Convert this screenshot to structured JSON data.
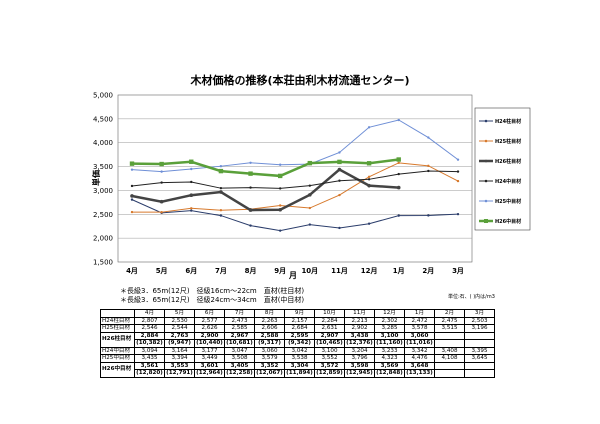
{
  "chart_data": {
    "type": "line",
    "title": "木材価格の推移(本荘由利木材流通センター)",
    "ylabel": "単価",
    "xlabel": "月",
    "ylim": [
      1500,
      5000
    ],
    "yticks": [
      "1,500",
      "2,000",
      "2,500",
      "3,000",
      "3,500",
      "4,000",
      "4,500",
      "5,000"
    ],
    "categories": [
      "4月",
      "5月",
      "6月",
      "7月",
      "8月",
      "9月",
      "10月",
      "11月",
      "12月",
      "1月",
      "2月",
      "3月"
    ],
    "grid": true,
    "legend_position": "right",
    "series": [
      {
        "name": "H24柱目材",
        "color": "#2b3d6b",
        "marker": "dot",
        "width": 1,
        "values": [
          2807,
          2530,
          2577,
          2473,
          2263,
          2157,
          2284,
          2213,
          2302,
          2472,
          2475,
          2503
        ]
      },
      {
        "name": "H25柱目材",
        "color": "#d7792c",
        "marker": "dot",
        "width": 1,
        "values": [
          2546,
          2544,
          2626,
          2585,
          2606,
          2684,
          2631,
          2902,
          3285,
          3578,
          3515,
          3196
        ]
      },
      {
        "name": "H26柱目材",
        "color": "#444444",
        "marker": "dot",
        "width": 2.5,
        "values": [
          2884,
          2763,
          2900,
          2967,
          2588,
          2595,
          2907,
          3438,
          3100,
          3060,
          null,
          null
        ]
      },
      {
        "name": "H24中目材",
        "color": "#222222",
        "marker": "dot",
        "width": 1,
        "values": [
          3094,
          3164,
          3177,
          3047,
          3060,
          3042,
          3100,
          3204,
          3233,
          3342,
          3408,
          3395
        ]
      },
      {
        "name": "H25中目材",
        "color": "#6f8fd6",
        "marker": "dot",
        "width": 1,
        "values": [
          3435,
          3394,
          3449,
          3508,
          3579,
          3538,
          3552,
          3796,
          4323,
          4476,
          4108,
          3645
        ]
      },
      {
        "name": "H26中目材",
        "color": "#5aa03a",
        "marker": "square",
        "width": 2.5,
        "values": [
          3561,
          3553,
          3601,
          3405,
          3352,
          3304,
          3572,
          3598,
          3569,
          3648,
          null,
          null
        ]
      }
    ]
  },
  "notes": [
    "＊長級3．65m(12尺)　径級16cm～22cm　直材(柱目材)",
    "＊長級3．65m(12尺)　径級24cm～34cm　直材(中目材)"
  ],
  "unit_note": "単位:石、( )内は/m3",
  "table": {
    "header": [
      "",
      "4月",
      "5月",
      "6月",
      "7月",
      "8月",
      "9月",
      "10月",
      "11月",
      "12月",
      "1月",
      "2月",
      "3月"
    ],
    "rows": [
      {
        "label": "H24柱目材",
        "cells": [
          "2,807",
          "2,530",
          "2,577",
          "2,473",
          "2,263",
          "2,157",
          "2,284",
          "2,213",
          "2,302",
          "2,472",
          "2,475",
          "2,503"
        ]
      },
      {
        "label": "H25柱目材",
        "cells": [
          "2,546",
          "2,544",
          "2,626",
          "2,585",
          "2,606",
          "2,684",
          "2,631",
          "2,902",
          "3,285",
          "3,578",
          "3,515",
          "3,196"
        ]
      },
      {
        "label": "H26柱目材",
        "bold": true,
        "cells": [
          "2,884",
          "2,763",
          "2,900",
          "2,967",
          "2,588",
          "2,595",
          "2,907",
          "3,438",
          "3,100",
          "3,060",
          "",
          ""
        ],
        "sub": [
          "(10,382)",
          "(9,947)",
          "(10,440)",
          "(10,681)",
          "(9,317)",
          "(9,342)",
          "(10,465)",
          "(12,376)",
          "(11,160)",
          "(11,016)",
          "",
          ""
        ]
      },
      {
        "label": "H24中目材",
        "cells": [
          "3,094",
          "3,164",
          "3,177",
          "3,047",
          "3,060",
          "3,042",
          "3,100",
          "3,204",
          "3,233",
          "3,342",
          "3,408",
          "3,395"
        ]
      },
      {
        "label": "H25中目材",
        "cells": [
          "3,435",
          "3,394",
          "3,449",
          "3,508",
          "3,579",
          "3,538",
          "3,552",
          "3,796",
          "4,323",
          "4,476",
          "4,108",
          "3,645"
        ]
      },
      {
        "label": "H26中目材",
        "bold": true,
        "cells": [
          "3,561",
          "3,553",
          "3,601",
          "3,405",
          "3,352",
          "3,304",
          "3,572",
          "3,598",
          "3,569",
          "3,648",
          "",
          ""
        ],
        "sub": [
          "(12,820)",
          "(12,791)",
          "(12,964)",
          "(12,258)",
          "(12,067)",
          "(11,894)",
          "(12,859)",
          "(12,945)",
          "(12,848)",
          "(13,133)",
          "",
          ""
        ]
      }
    ]
  }
}
